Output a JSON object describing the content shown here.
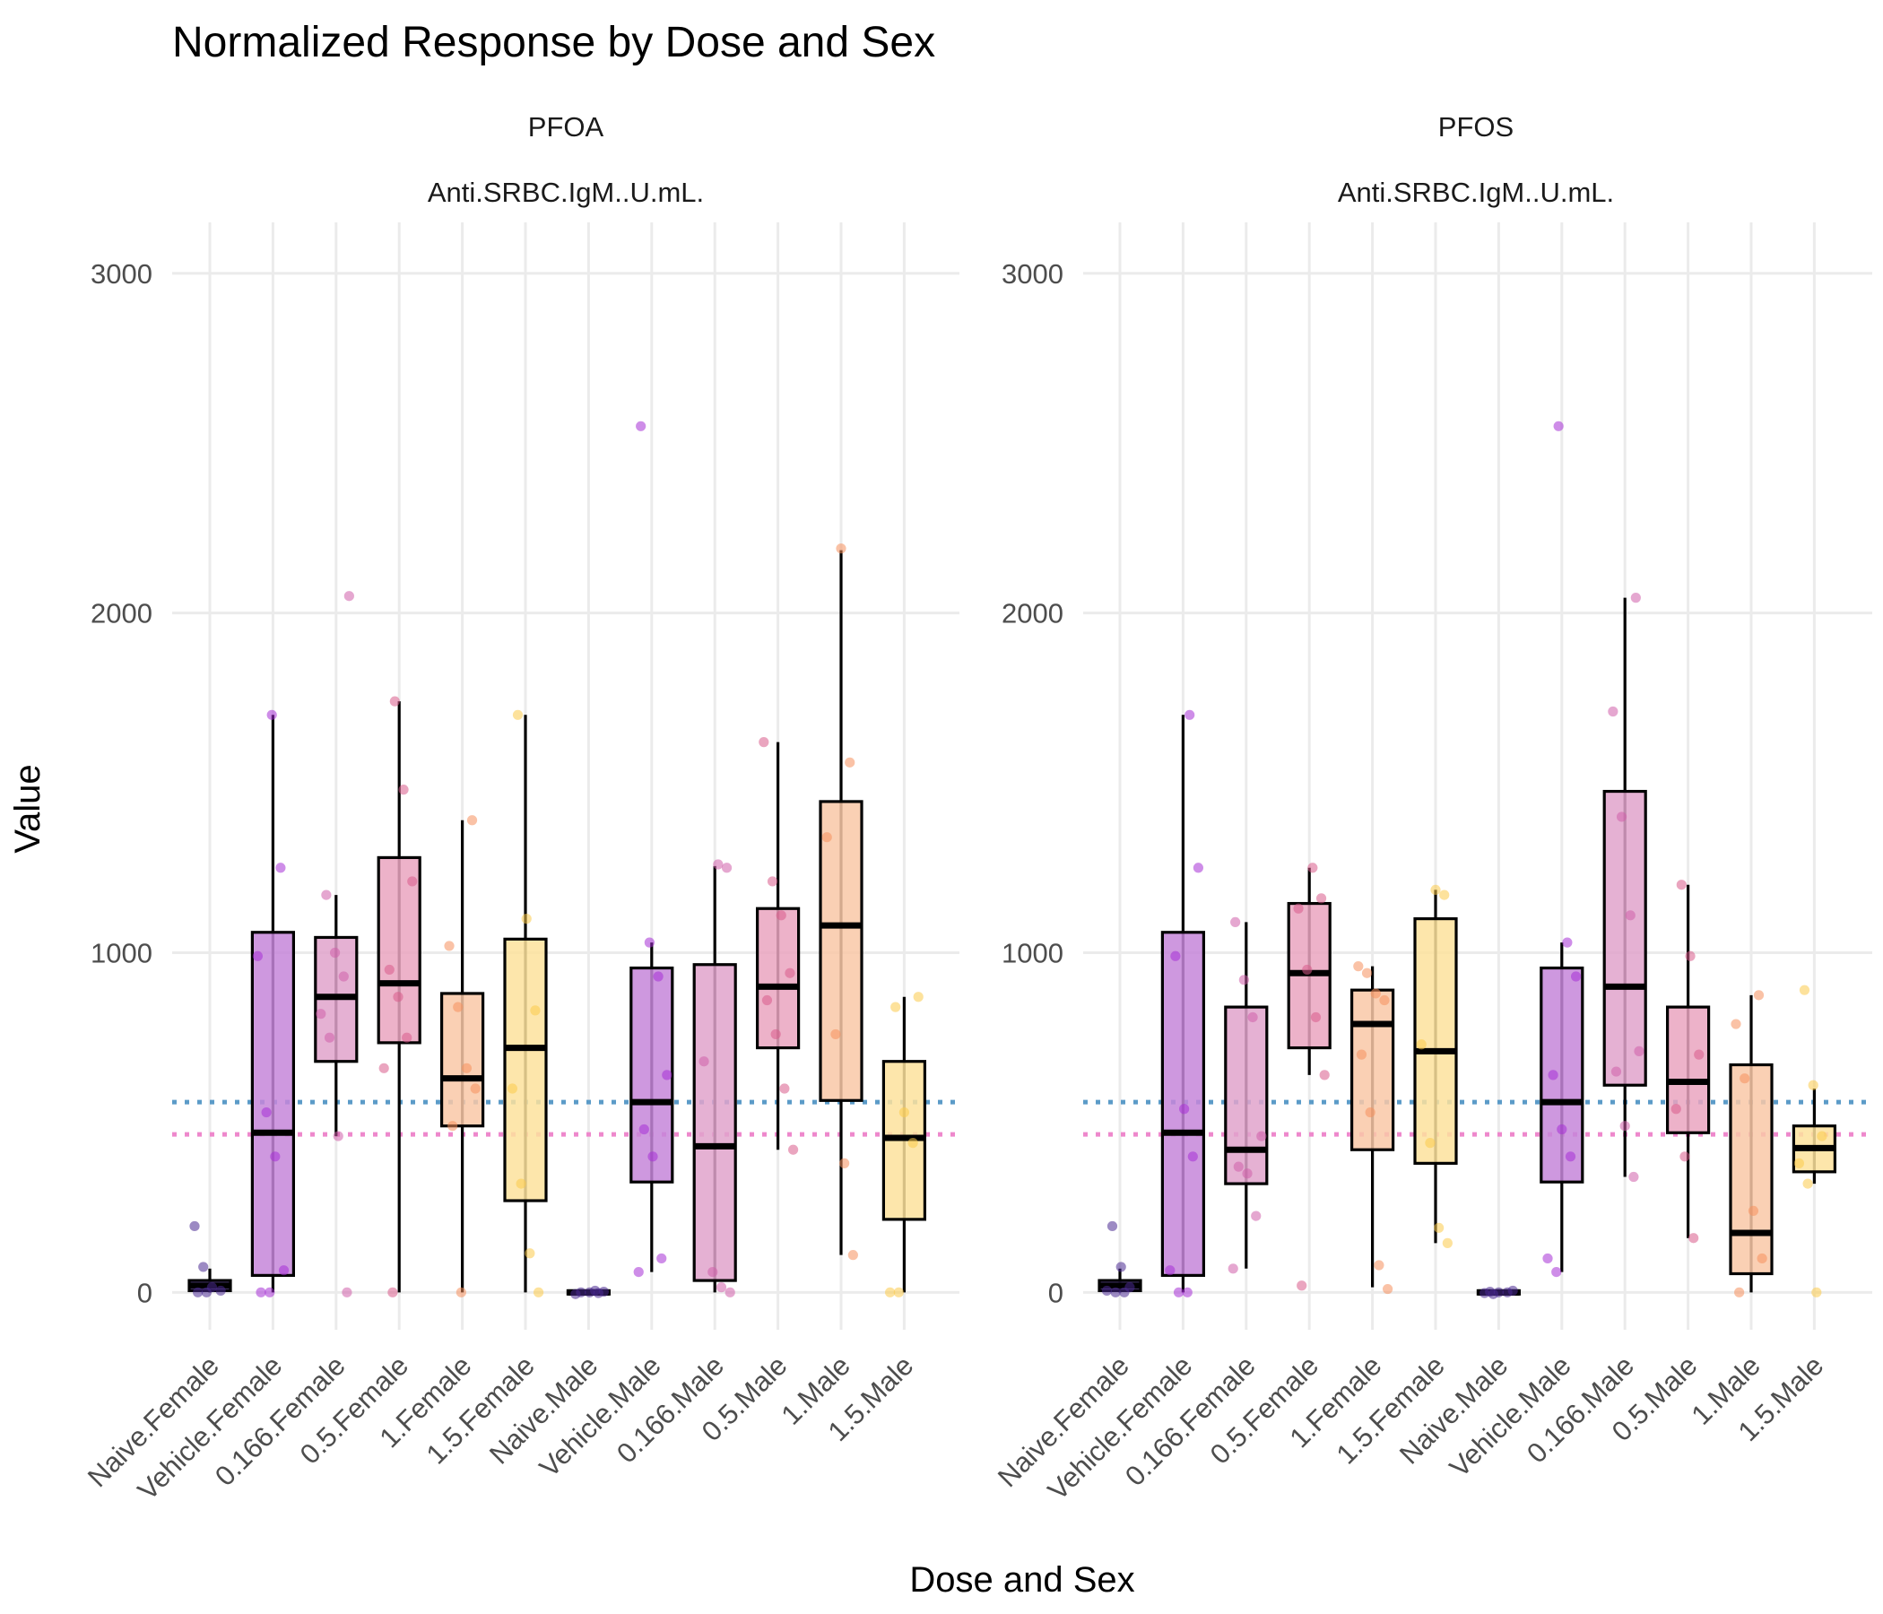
{
  "colors": {
    "Naive": "#4b2991",
    "Vehicle": "#a52fd6",
    "0.166": "#cf5ea9",
    "0.5": "#d95b8a",
    "1": "#f58f5c",
    "1.5": "#fcca4b",
    "box_fill": {
      "Naive": "#5a3aa0",
      "Vehicle": "#c586d9",
      "0.166": "#e0a3cb",
      "0.5": "#eaa5c0",
      "1": "#f9c8a7",
      "1.5": "#fde29c"
    },
    "ref_blue": "#5b9bc8",
    "ref_pink": "#ee88cc"
  },
  "chart_data": {
    "type": "box",
    "title": "Normalized Response by Dose and Sex",
    "xlabel": "Dose and Sex",
    "ylabel": "Value",
    "ylim": [
      -110,
      3150
    ],
    "yticks": [
      0,
      1000,
      2000,
      3000
    ],
    "grid": true,
    "legend": "none",
    "categories": [
      "Naive.Female",
      "Vehicle.Female",
      "0.166.Female",
      "0.5.Female",
      "1.Female",
      "1.5.Female",
      "Naive.Male",
      "Vehicle.Male",
      "0.166.Male",
      "0.5.Male",
      "1.Male",
      "1.5.Male"
    ],
    "panels": [
      {
        "compound": "PFOA",
        "measure": "Anti.SRBC.IgM..U.mL.",
        "reference_lines": [
          {
            "color": "ref_blue",
            "y": 560
          },
          {
            "color": "ref_pink",
            "y": 465
          }
        ],
        "boxes": [
          {
            "category": "Naive.Female",
            "dose": "Naive",
            "whisker_low": 0,
            "q1": 5,
            "median": 20,
            "q3": 35,
            "whisker_high": 70,
            "points": [
              195,
              75,
              15,
              5,
              0,
              0
            ]
          },
          {
            "category": "Vehicle.Female",
            "dose": "Vehicle",
            "whisker_low": 0,
            "q1": 50,
            "median": 470,
            "q3": 1060,
            "whisker_high": 1700,
            "points": [
              1700,
              1250,
              990,
              530,
              400,
              65,
              0,
              0
            ]
          },
          {
            "category": "0.166.Female",
            "dose": "0.166",
            "whisker_low": 460,
            "q1": 680,
            "median": 870,
            "q3": 1045,
            "whisker_high": 1170,
            "points": [
              2050,
              1170,
              1000,
              930,
              820,
              750,
              460,
              0
            ]
          },
          {
            "category": "0.5.Female",
            "dose": "0.5",
            "whisker_low": 0,
            "q1": 735,
            "median": 910,
            "q3": 1280,
            "whisker_high": 1740,
            "points": [
              1740,
              1480,
              1210,
              950,
              870,
              750,
              660,
              0
            ]
          },
          {
            "category": "1.Female",
            "dose": "1",
            "whisker_low": 0,
            "q1": 490,
            "median": 630,
            "q3": 880,
            "whisker_high": 1390,
            "points": [
              1390,
              1020,
              840,
              660,
              600,
              490,
              0
            ]
          },
          {
            "category": "1.5.Female",
            "dose": "1.5",
            "whisker_low": 0,
            "q1": 270,
            "median": 720,
            "q3": 1040,
            "whisker_high": 1700,
            "points": [
              1700,
              1100,
              830,
              600,
              320,
              115,
              0
            ]
          },
          {
            "category": "Naive.Male",
            "dose": "Naive",
            "whisker_low": -8,
            "q1": -5,
            "median": 0,
            "q3": 5,
            "whisker_high": 8,
            "points": [
              5,
              2,
              0,
              0,
              -2,
              -5
            ]
          },
          {
            "category": "Vehicle.Male",
            "dose": "Vehicle",
            "whisker_low": 60,
            "q1": 325,
            "median": 560,
            "q3": 955,
            "whisker_high": 1030,
            "points": [
              2550,
              1030,
              930,
              640,
              480,
              400,
              100,
              60
            ]
          },
          {
            "category": "0.166.Male",
            "dose": "0.166",
            "whisker_low": 0,
            "q1": 35,
            "median": 430,
            "q3": 965,
            "whisker_high": 1255,
            "points": [
              1260,
              1250,
              680,
              60,
              15,
              0
            ]
          },
          {
            "category": "0.5.Male",
            "dose": "0.5",
            "whisker_low": 420,
            "q1": 720,
            "median": 900,
            "q3": 1130,
            "whisker_high": 1620,
            "points": [
              1620,
              1210,
              1110,
              940,
              860,
              760,
              600,
              420
            ]
          },
          {
            "category": "1.Male",
            "dose": "1",
            "whisker_low": 110,
            "q1": 565,
            "median": 1080,
            "q3": 1445,
            "whisker_high": 2185,
            "points": [
              2190,
              1560,
              1340,
              760,
              380,
              110
            ]
          },
          {
            "category": "1.5.Male",
            "dose": "1.5",
            "whisker_low": 0,
            "q1": 215,
            "median": 455,
            "q3": 680,
            "whisker_high": 870,
            "points": [
              870,
              840,
              530,
              440,
              0,
              0
            ]
          }
        ]
      },
      {
        "compound": "PFOS",
        "measure": "Anti.SRBC.IgM..U.mL.",
        "reference_lines": [
          {
            "color": "ref_blue",
            "y": 560
          },
          {
            "color": "ref_pink",
            "y": 465
          }
        ],
        "boxes": [
          {
            "category": "Naive.Female",
            "dose": "Naive",
            "whisker_low": 0,
            "q1": 5,
            "median": 20,
            "q3": 35,
            "whisker_high": 70,
            "points": [
              195,
              75,
              15,
              5,
              0,
              0
            ]
          },
          {
            "category": "Vehicle.Female",
            "dose": "Vehicle",
            "whisker_low": 0,
            "q1": 50,
            "median": 470,
            "q3": 1060,
            "whisker_high": 1700,
            "points": [
              1700,
              1250,
              990,
              540,
              400,
              65,
              0,
              0
            ]
          },
          {
            "category": "0.166.Female",
            "dose": "0.166",
            "whisker_low": 70,
            "q1": 320,
            "median": 420,
            "q3": 840,
            "whisker_high": 1090,
            "points": [
              1090,
              920,
              810,
              460,
              370,
              350,
              225,
              70
            ]
          },
          {
            "category": "0.5.Female",
            "dose": "0.5",
            "whisker_low": 640,
            "q1": 720,
            "median": 940,
            "q3": 1145,
            "whisker_high": 1250,
            "points": [
              1250,
              1160,
              1130,
              950,
              810,
              640,
              20
            ]
          },
          {
            "category": "1.Female",
            "dose": "1",
            "whisker_low": 15,
            "q1": 420,
            "median": 790,
            "q3": 890,
            "whisker_high": 960,
            "points": [
              960,
              940,
              880,
              860,
              700,
              530,
              80,
              10
            ]
          },
          {
            "category": "1.5.Female",
            "dose": "1.5",
            "whisker_low": 145,
            "q1": 380,
            "median": 710,
            "q3": 1100,
            "whisker_high": 1185,
            "points": [
              1185,
              1170,
              730,
              440,
              190,
              145
            ]
          },
          {
            "category": "Naive.Male",
            "dose": "Naive",
            "whisker_low": -8,
            "q1": -5,
            "median": 0,
            "q3": 5,
            "whisker_high": 8,
            "points": [
              5,
              2,
              0,
              0,
              -2,
              -5
            ]
          },
          {
            "category": "Vehicle.Male",
            "dose": "Vehicle",
            "whisker_low": 60,
            "q1": 325,
            "median": 560,
            "q3": 955,
            "whisker_high": 1030,
            "points": [
              2550,
              1030,
              930,
              640,
              480,
              400,
              100,
              60
            ]
          },
          {
            "category": "0.166.Male",
            "dose": "0.166",
            "whisker_low": 340,
            "q1": 610,
            "median": 900,
            "q3": 1475,
            "whisker_high": 2045,
            "points": [
              2045,
              1710,
              1400,
              1110,
              710,
              650,
              490,
              340
            ]
          },
          {
            "category": "0.5.Male",
            "dose": "0.5",
            "whisker_low": 160,
            "q1": 470,
            "median": 620,
            "q3": 840,
            "whisker_high": 1200,
            "points": [
              1200,
              990,
              700,
              540,
              400,
              160
            ]
          },
          {
            "category": "1.Male",
            "dose": "1",
            "whisker_low": 0,
            "q1": 55,
            "median": 175,
            "q3": 670,
            "whisker_high": 875,
            "points": [
              875,
              790,
              630,
              240,
              100,
              0
            ]
          },
          {
            "category": "1.5.Male",
            "dose": "1.5",
            "whisker_low": 320,
            "q1": 355,
            "median": 425,
            "q3": 490,
            "whisker_high": 600,
            "points": [
              890,
              610,
              460,
              380,
              320,
              0
            ]
          }
        ]
      }
    ]
  }
}
